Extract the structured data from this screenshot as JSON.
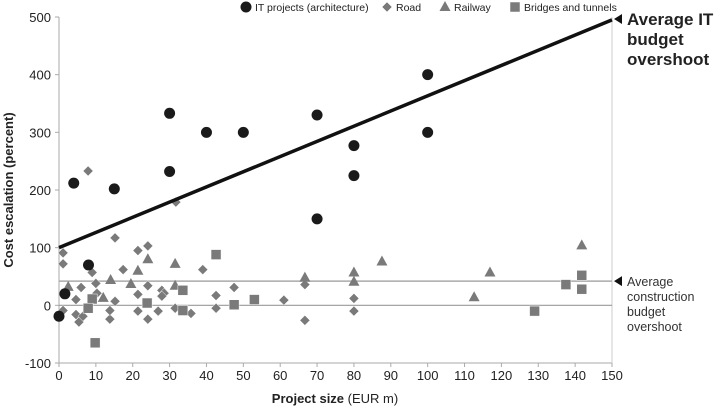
{
  "chart_data": {
    "type": "scatter",
    "title": "",
    "xlabel_bold": "Project size",
    "xlabel_rest": " (EUR m)",
    "ylabel": "Cost escalation (percent)",
    "xlim": [
      0,
      150
    ],
    "ylim": [
      -100,
      500
    ],
    "xticks": [
      0,
      10,
      20,
      30,
      40,
      50,
      60,
      70,
      80,
      90,
      100,
      110,
      120,
      130,
      140,
      150
    ],
    "yticks": [
      -100,
      0,
      100,
      200,
      300,
      400,
      500
    ],
    "grid": false,
    "legend_placement": "top",
    "colors": {
      "it": "#1a1a1a",
      "construction": "#7a7a7a",
      "avg_construction_line": "#aaaaaa",
      "zero_line": "#999999"
    },
    "series": [
      {
        "name": "IT projects (architecture)",
        "marker": "circle",
        "color": "#1a1a1a",
        "points": [
          [
            0,
            -19
          ],
          [
            1.6,
            20
          ],
          [
            4,
            212
          ],
          [
            8,
            70
          ],
          [
            15,
            202
          ],
          [
            30,
            333
          ],
          [
            30,
            232
          ],
          [
            40,
            300
          ],
          [
            50,
            300
          ],
          [
            70,
            330
          ],
          [
            70,
            150
          ],
          [
            80,
            277
          ],
          [
            80,
            225
          ],
          [
            100,
            400
          ],
          [
            100,
            300
          ]
        ]
      },
      {
        "name": "Road",
        "marker": "diamond",
        "color": "#7a7a7a",
        "points": [
          [
            7.9,
            233
          ],
          [
            31.7,
            179
          ],
          [
            15.2,
            117
          ],
          [
            1.1,
            91
          ],
          [
            1.1,
            72
          ],
          [
            9,
            57
          ],
          [
            10,
            38
          ],
          [
            21.4,
            95
          ],
          [
            24.1,
            103
          ],
          [
            17.4,
            62
          ],
          [
            39,
            62
          ],
          [
            6,
            31
          ],
          [
            4.6,
            10
          ],
          [
            4.6,
            -16
          ],
          [
            5.4,
            -29
          ],
          [
            6.5,
            -19
          ],
          [
            1.1,
            -9
          ],
          [
            10.3,
            21
          ],
          [
            13.8,
            -24
          ],
          [
            13.8,
            -9
          ],
          [
            15.2,
            7
          ],
          [
            21.4,
            19
          ],
          [
            21.4,
            -10
          ],
          [
            24.1,
            34
          ],
          [
            24.1,
            -24
          ],
          [
            26.9,
            -10
          ],
          [
            27.9,
            26
          ],
          [
            28.5,
            21
          ],
          [
            27.9,
            16
          ],
          [
            31.5,
            -5
          ],
          [
            35.8,
            -14
          ],
          [
            42.6,
            17
          ],
          [
            42.6,
            -5
          ],
          [
            47.5,
            31
          ],
          [
            61,
            9
          ],
          [
            66.7,
            36
          ],
          [
            66.7,
            -26
          ],
          [
            80,
            12
          ],
          [
            80,
            -10
          ]
        ]
      },
      {
        "name": "Railway",
        "marker": "triangle",
        "color": "#7a7a7a",
        "points": [
          [
            2.5,
            32
          ],
          [
            12,
            13
          ],
          [
            14,
            44
          ],
          [
            19.5,
            37
          ],
          [
            21.4,
            60
          ],
          [
            24.1,
            80
          ],
          [
            31.5,
            72
          ],
          [
            31.5,
            34
          ],
          [
            66.7,
            48
          ],
          [
            80,
            57
          ],
          [
            80,
            41
          ],
          [
            87.6,
            76
          ],
          [
            112.6,
            14
          ],
          [
            116.9,
            57
          ],
          [
            141.8,
            104
          ]
        ]
      },
      {
        "name": "Bridges and tunnels",
        "marker": "square",
        "color": "#7a7a7a",
        "points": [
          [
            9,
            11
          ],
          [
            7.9,
            -5
          ],
          [
            9.8,
            -65
          ],
          [
            23.9,
            4
          ],
          [
            33.6,
            26
          ],
          [
            33.6,
            -9
          ],
          [
            42.6,
            88
          ],
          [
            47.5,
            1
          ],
          [
            53,
            10
          ],
          [
            129,
            -10
          ],
          [
            137.5,
            36
          ],
          [
            141.8,
            52
          ],
          [
            141.8,
            28
          ]
        ]
      }
    ],
    "trend_line": {
      "from": [
        0,
        100
      ],
      "to": [
        150,
        495
      ]
    },
    "avg_construction_value": 42,
    "annotations": {
      "it": [
        "Average IT",
        "budget",
        "overshoot"
      ],
      "construction": [
        "Average",
        "construction",
        "budget",
        "overshoot"
      ]
    }
  }
}
